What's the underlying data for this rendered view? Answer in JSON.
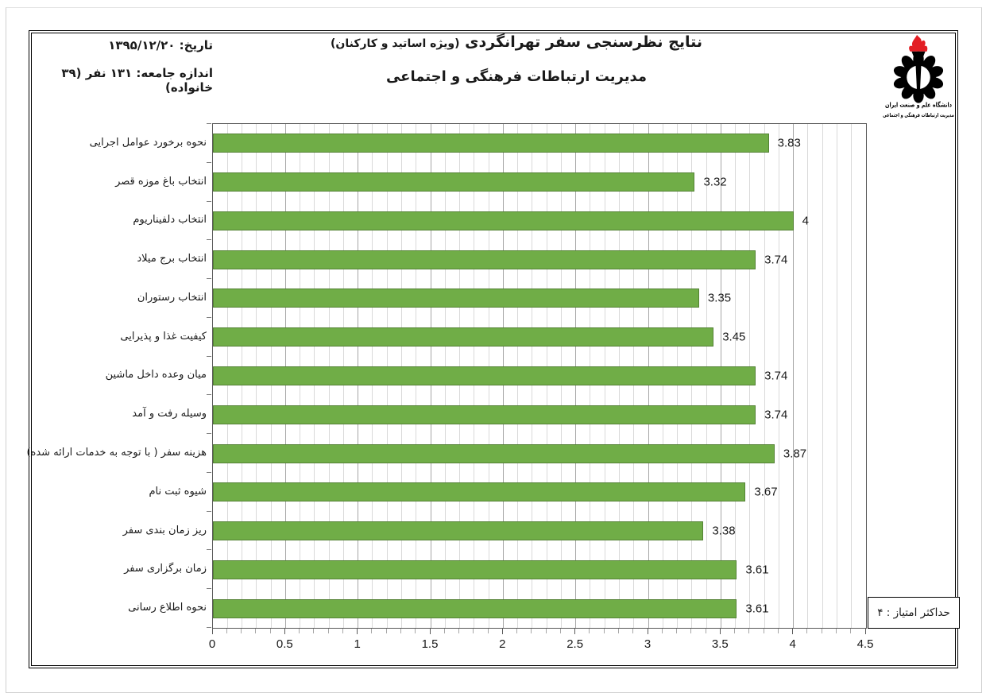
{
  "page": {
    "header": {
      "date_line": "تاریخ: ۱۳۹۵/۱۲/۲۰",
      "population_line": "اندازه جامعه: ۱۳۱ نفر (۳۹ خانواده)",
      "title_line1": "نتایج نظرسنجی سفر تهرانگردی",
      "title_line1_paren": "(ویژه اساتید و کارکنان)",
      "title_line2": "مدیریت ارتباطات فرهنگی و اجتماعی",
      "logo": {
        "caption_line1": "دانشگاه علم و صنعت ایران",
        "caption_line2": "مدیریت ارتباطات فرهنگی و اجتماعی",
        "flame_color": "#E31E24",
        "emblem_color": "#000000"
      }
    },
    "max_score_note": "حداکثر امتیاز : ۴"
  },
  "chart_data": {
    "type": "bar",
    "orientation": "horizontal",
    "categories": [
      "نحوه برخورد عوامل اجرایی",
      "انتخاب باغ موزه قصر",
      "انتخاب دلفیناریوم",
      "انتخاب برج میلاد",
      "انتخاب رستوران",
      "کیفیت غذا و پذیرایی",
      "میان وعده داخل ماشین",
      "وسیله رفت و آمد",
      "هزینه سفر ( با توجه به خدمات ارائه شده)",
      "شیوه ثبت نام",
      "ریز زمان بندی سفر",
      "زمان برگزاری سفر",
      "نحوه اطلاع رسانی"
    ],
    "values": [
      3.83,
      3.32,
      4,
      3.74,
      3.35,
      3.45,
      3.74,
      3.74,
      3.87,
      3.67,
      3.38,
      3.61,
      3.61
    ],
    "value_labels": [
      "3.83",
      "3.32",
      "4",
      "3.74",
      "3.35",
      "3.45",
      "3.74",
      "3.74",
      "3.87",
      "3.67",
      "3.38",
      "3.61",
      "3.61"
    ],
    "xlabel": "",
    "ylabel": "",
    "xlim": [
      0,
      4.5
    ],
    "x_tick_labels": [
      "0",
      "0.5",
      "1",
      "1.5",
      "2",
      "2.5",
      "3",
      "3.5",
      "4",
      "4.5"
    ],
    "major_unit": 0.5,
    "minor_unit": 0.1,
    "grid": true,
    "legend": "none",
    "bar_color": "#70AD47",
    "bar_border_color": "#548235",
    "gridline_minor_color": "#d9d9d9",
    "gridline_major_color": "#a6a6a6"
  }
}
